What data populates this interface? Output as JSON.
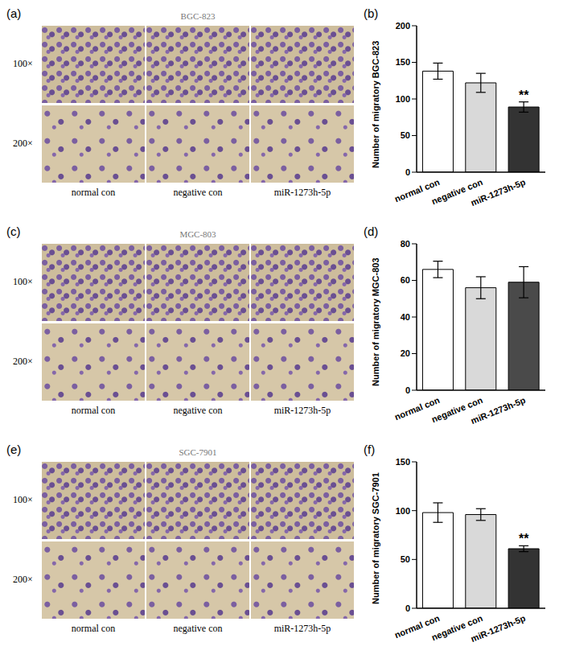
{
  "panels": [
    {
      "label": "(a)",
      "title": "BGC-823",
      "row_labels": [
        "100×",
        "200×"
      ],
      "column_labels": [
        "normal con",
        "negative con",
        "miR-1273h-5p"
      ]
    },
    {
      "label": "(c)",
      "title": "MGC-803",
      "row_labels": [
        "100×",
        "200×"
      ],
      "column_labels": [
        "normal con",
        "negative con",
        "miR-1273h-5p"
      ]
    },
    {
      "label": "(e)",
      "title": "SGC-7901",
      "row_labels": [
        "100×",
        "200×"
      ],
      "column_labels": [
        "normal con",
        "negative con",
        "miR-1273h-5p"
      ]
    }
  ],
  "chart_data": [
    {
      "panel": "(b)",
      "type": "bar",
      "y_label": "Number of migratory BGC-823",
      "categories": [
        "normal con",
        "negative con",
        "miR-1273h-5p"
      ],
      "values": [
        138,
        122,
        89
      ],
      "errors": [
        11,
        13,
        7
      ],
      "colors": [
        "#ffffff",
        "#d9d9d9",
        "#333333"
      ],
      "ylim": [
        0,
        200
      ],
      "yticks": [
        0,
        50,
        100,
        150,
        200
      ],
      "annotations": [
        null,
        null,
        "**"
      ]
    },
    {
      "panel": "(d)",
      "type": "bar",
      "y_label": "Number of migratory MGC-803",
      "categories": [
        "normal con",
        "negative con",
        "miR-1273h-5p"
      ],
      "values": [
        66,
        56,
        59
      ],
      "errors": [
        4.5,
        6,
        8.5
      ],
      "colors": [
        "#ffffff",
        "#d9d9d9",
        "#4a4a4a"
      ],
      "ylim": [
        0,
        80
      ],
      "yticks": [
        0,
        20,
        40,
        60,
        80
      ],
      "annotations": [
        null,
        null,
        null
      ]
    },
    {
      "panel": "(f)",
      "type": "bar",
      "y_label": "Number of migratory SGC-7901",
      "categories": [
        "normal con",
        "negative con",
        "miR-1273h-5p"
      ],
      "values": [
        98,
        96,
        61
      ],
      "errors": [
        10,
        6,
        3
      ],
      "colors": [
        "#ffffff",
        "#d9d9d9",
        "#333333"
      ],
      "ylim": [
        0,
        150
      ],
      "yticks": [
        0,
        50,
        100,
        150
      ],
      "annotations": [
        null,
        null,
        "**"
      ]
    }
  ]
}
